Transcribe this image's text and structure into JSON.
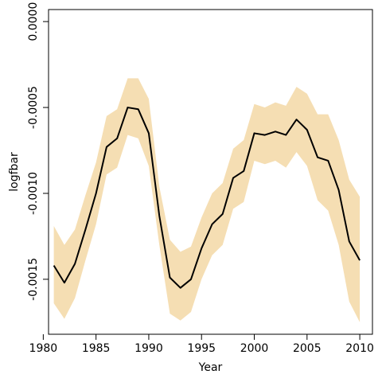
{
  "chart_data": {
    "type": "area",
    "xlabel": "Year",
    "ylabel": "logfbar",
    "xlim": [
      1980.5,
      2011.2
    ],
    "ylim": [
      -0.00182,
      7e-05
    ],
    "xticks": [
      1980,
      1985,
      1990,
      1995,
      2000,
      2005,
      2010
    ],
    "yticks": [
      0.0,
      -0.0005,
      -0.001,
      -0.0015
    ],
    "ytick_labels": [
      "0.0000",
      "-0.0005",
      "-0.0010",
      "-0.0015"
    ],
    "band_color": "#f5deb3",
    "line_color": "#000000",
    "grid": false,
    "x": [
      1981,
      1982,
      1983,
      1984,
      1985,
      1986,
      1987,
      1988,
      1989,
      1990,
      1991,
      1992,
      1993,
      1994,
      1995,
      1996,
      1997,
      1998,
      1999,
      2000,
      2001,
      2002,
      2003,
      2004,
      2005,
      2006,
      2007,
      2008,
      2009,
      2010
    ],
    "series": [
      {
        "values": [
          -0.00142,
          -0.00152,
          -0.00141,
          -0.00121,
          -0.001,
          -0.00073,
          -0.00068,
          -0.0005,
          -0.00051,
          -0.00065,
          -0.00113,
          -0.00149,
          -0.00155,
          -0.0015,
          -0.00132,
          -0.00118,
          -0.00112,
          -0.00091,
          -0.00087,
          -0.00065,
          -0.00066,
          -0.00064,
          -0.00066,
          -0.00057,
          -0.00063,
          -0.00079,
          -0.00081,
          -0.00098,
          -0.00128,
          -0.00139
        ],
        "upper": [
          -0.00119,
          -0.0013,
          -0.00121,
          -0.00101,
          -0.00082,
          -0.00055,
          -0.00051,
          -0.00033,
          -0.00033,
          -0.00045,
          -0.00096,
          -0.00127,
          -0.00134,
          -0.00131,
          -0.00114,
          -0.001,
          -0.00094,
          -0.00074,
          -0.00069,
          -0.00048,
          -0.0005,
          -0.00047,
          -0.00049,
          -0.00038,
          -0.00042,
          -0.00054,
          -0.00054,
          -0.00069,
          -0.00092,
          -0.00102
        ],
        "lower": [
          -0.00164,
          -0.00173,
          -0.00161,
          -0.00139,
          -0.00118,
          -0.00089,
          -0.00085,
          -0.00066,
          -0.00068,
          -0.00084,
          -0.0013,
          -0.0017,
          -0.00174,
          -0.00169,
          -0.0015,
          -0.00136,
          -0.0013,
          -0.00109,
          -0.00105,
          -0.00081,
          -0.00083,
          -0.00081,
          -0.00085,
          -0.00076,
          -0.00084,
          -0.00104,
          -0.0011,
          -0.0013,
          -0.00163,
          -0.00175
        ]
      }
    ]
  }
}
